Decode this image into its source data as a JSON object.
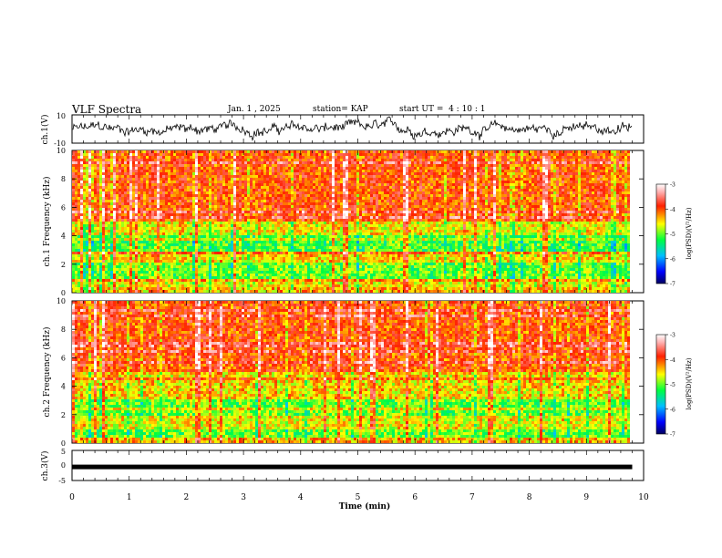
{
  "header": {
    "title": "VLF Spectra",
    "date": "Jan. 1 , 2025",
    "station": "station= KAP",
    "start": "start UT =  4 : 10 : 1"
  },
  "chart_data": [
    {
      "type": "line",
      "name": "ch1-waveform",
      "ylabel": "ch.1(V)",
      "ylim": [
        -10,
        10
      ],
      "yticks": [
        "10",
        "-10"
      ],
      "xlim": [
        0,
        10
      ]
    },
    {
      "type": "heatmap",
      "name": "ch1-spectrogram",
      "ylabel": "ch.1 Frequency (kHz)",
      "ylim": [
        0,
        10
      ],
      "yticks": [
        "0",
        "2",
        "4",
        "6",
        "8",
        "10"
      ],
      "xlim": [
        0,
        9.8
      ],
      "bands": [
        {
          "from": 5.0,
          "to": 10.0,
          "level": -4.0
        },
        {
          "from": 4.0,
          "to": 5.0,
          "level": -4.6
        },
        {
          "from": 2.8,
          "to": 4.0,
          "level": -5.1
        },
        {
          "from": 2.2,
          "to": 2.8,
          "level": -4.5
        },
        {
          "from": 1.0,
          "to": 2.2,
          "level": -5.0
        },
        {
          "from": 0.4,
          "to": 1.0,
          "level": -4.6
        },
        {
          "from": 0.0,
          "to": 0.4,
          "level": -4.4
        }
      ],
      "colorbar": {
        "label": "log(PSD)(V²/Hz)",
        "range": [
          -7,
          -3
        ],
        "ticks": [
          "-3",
          "-4",
          "-5",
          "-6",
          "-7"
        ]
      }
    },
    {
      "type": "heatmap",
      "name": "ch2-spectrogram",
      "ylabel": "ch.2 Frequency (kHz)",
      "ylim": [
        0,
        10
      ],
      "yticks": [
        "0",
        "2",
        "4",
        "6",
        "8",
        "10"
      ],
      "xlim": [
        0,
        9.8
      ],
      "bands": [
        {
          "from": 5.0,
          "to": 10.0,
          "level": -4.0
        },
        {
          "from": 3.0,
          "to": 5.0,
          "level": -4.5
        },
        {
          "from": 2.0,
          "to": 3.0,
          "level": -5.0
        },
        {
          "from": 1.0,
          "to": 2.0,
          "level": -4.6
        },
        {
          "from": 0.3,
          "to": 1.0,
          "level": -5.0
        },
        {
          "from": 0.0,
          "to": 0.3,
          "level": -4.4
        }
      ],
      "colorbar": {
        "label": "log(PSD)(V²/Hz)",
        "range": [
          -7,
          -3
        ],
        "ticks": [
          "-3",
          "-4",
          "-5",
          "-6",
          "-7"
        ]
      }
    },
    {
      "type": "line",
      "name": "ch3-waveform",
      "ylabel": "ch.3(V)",
      "ylim": [
        -5,
        5
      ],
      "yticks": [
        "5",
        "0",
        "-5"
      ],
      "level": -0.5,
      "xlim": [
        0,
        10
      ],
      "xlabel": "Time (min)",
      "xticks": [
        "0",
        "1",
        "2",
        "3",
        "4",
        "5",
        "6",
        "7",
        "8",
        "9",
        "10"
      ]
    }
  ]
}
